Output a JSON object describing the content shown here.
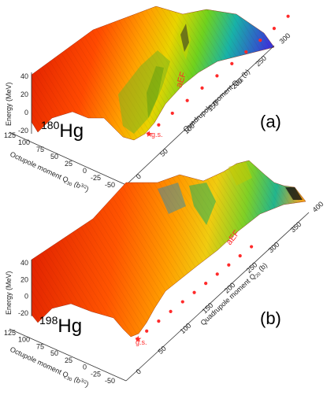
{
  "chart_data": [
    {
      "type": "surface",
      "nucleus_mass": "180",
      "nucleus_symbol": "Hg",
      "panel_label": "(a)",
      "z_axis_label": "Energy (MeV)",
      "y_axis_label_main": "Octupole moment Q",
      "y_axis_label_sub": "30",
      "y_axis_label_unit": " (b",
      "y_axis_label_exp": "3/2",
      "y_axis_label_close": ")",
      "x_axis_label_main": "Quadrupole moment Q",
      "x_axis_label_sub": "20",
      "x_axis_label_unit": " (b)",
      "z_ticks": [
        "40",
        "20",
        "0",
        "-20"
      ],
      "y_ticks": [
        "125",
        "100",
        "75",
        "50",
        "25",
        "0",
        "-25",
        "-50"
      ],
      "x_ticks": [
        "0",
        "50",
        "100",
        "150",
        "200",
        "250",
        "300"
      ],
      "zlim": [
        -20,
        40
      ],
      "ylim": [
        -50,
        125
      ],
      "xlim": [
        0,
        300
      ],
      "path_label": "aEF",
      "ground_state_label": "g.s.",
      "aEF_path": {
        "q20": [
          5,
          20,
          40,
          60,
          80,
          100,
          120,
          140,
          160,
          180,
          200
        ],
        "q30": [
          0,
          0,
          0,
          5,
          10,
          15,
          20,
          22,
          24,
          25,
          26
        ],
        "energy": [
          -15,
          -12,
          -8,
          -3,
          1,
          4,
          7,
          10,
          13,
          17,
          22
        ]
      },
      "colormap": [
        "#cc0000",
        "#ff3300",
        "#ff8800",
        "#ffcc00",
        "#aadd00",
        "#22cc44",
        "#1199cc",
        "#2244dd",
        "#6622cc"
      ]
    },
    {
      "type": "surface",
      "nucleus_mass": "198",
      "nucleus_symbol": "Hg",
      "panel_label": "(b)",
      "z_axis_label": "Energy (MeV)",
      "y_axis_label_main": "Octupole moment Q",
      "y_axis_label_sub": "30",
      "y_axis_label_unit": " (b",
      "y_axis_label_exp": "3/2",
      "y_axis_label_close": ")",
      "x_axis_label_main": "Quadrupole moment Q",
      "x_axis_label_sub": "20",
      "x_axis_label_unit": " (b)",
      "z_ticks": [
        "40",
        "20",
        "0",
        "-20"
      ],
      "y_ticks": [
        "125",
        "100",
        "75",
        "50",
        "25",
        "0",
        "-25",
        "-50"
      ],
      "x_ticks": [
        "0",
        "50",
        "100",
        "150",
        "200",
        "250",
        "300",
        "350",
        "400"
      ],
      "zlim": [
        -20,
        40
      ],
      "ylim": [
        -50,
        125
      ],
      "xlim": [
        0,
        400
      ],
      "path_label": "aEF",
      "ground_state_label": "g.s.",
      "aEF_path": {
        "q20": [
          5,
          30,
          60,
          90,
          120,
          150,
          180,
          210,
          240,
          270,
          300
        ],
        "q30": [
          0,
          0,
          5,
          10,
          15,
          18,
          20,
          22,
          24,
          25,
          26
        ],
        "energy": [
          -15,
          -11,
          -6,
          -2,
          2,
          5,
          8,
          11,
          14,
          17,
          20
        ]
      },
      "colormap": [
        "#cc0000",
        "#ff3300",
        "#ff8800",
        "#ffcc00",
        "#aadd00",
        "#22cc44",
        "#1199cc",
        "#2244dd",
        "#111111"
      ]
    }
  ]
}
